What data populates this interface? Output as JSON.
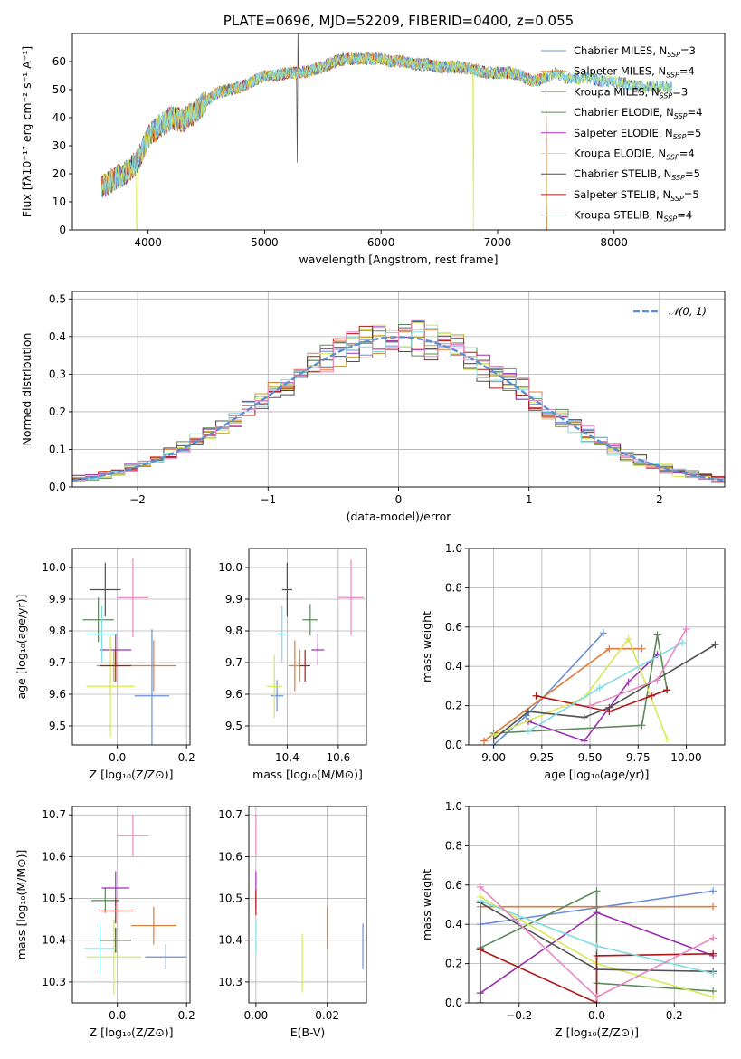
{
  "chart_data": [
    {
      "type": "line",
      "id": "spectrum",
      "title": "PLATE=0696, MJD=52209, FIBERID=0400, z=0.055",
      "xlabel": "wavelength [Angstrom, rest frame]",
      "ylabel": "Flux [fλ10⁻¹⁷ erg cm⁻² s⁻¹ A⁻¹]",
      "xlim": [
        3350,
        8950
      ],
      "ylim": [
        0,
        70
      ],
      "xticks": [
        4000,
        5000,
        6000,
        7000,
        8000
      ],
      "yticks": [
        0,
        10,
        20,
        30,
        40,
        50,
        60
      ],
      "grid": false,
      "legend_position": "top-right",
      "x": [
        3600,
        3700,
        3800,
        3900,
        4000,
        4100,
        4200,
        4300,
        4400,
        4500,
        4600,
        4700,
        4800,
        4900,
        5000,
        5100,
        5200,
        5300,
        5400,
        5500,
        5600,
        5700,
        5800,
        5900,
        6000,
        6100,
        6200,
        6300,
        6400,
        6500,
        6600,
        6700,
        6800,
        6900,
        7000,
        7100,
        7200,
        7300,
        7400,
        7500,
        7600,
        7700,
        7800,
        7900,
        8000,
        8100,
        8200,
        8300,
        8400,
        8500
      ],
      "y": [
        15,
        18,
        20,
        24,
        33,
        37,
        40,
        39,
        42,
        46,
        49,
        50,
        51,
        53,
        55,
        55,
        56,
        56,
        57,
        58,
        60,
        61,
        61,
        61,
        61,
        60,
        60,
        59,
        59,
        58,
        58,
        58,
        57,
        56,
        56,
        56,
        55,
        53,
        54,
        56,
        54,
        54,
        54,
        53,
        53,
        52,
        51,
        51,
        51,
        51
      ],
      "series": [
        {
          "name": "Chabrier MILES, N",
          "sub": "SSP",
          "suffix": "=3",
          "color": "#6a8ed8"
        },
        {
          "name": "Salpeter MILES, N",
          "sub": "SSP",
          "suffix": "=4",
          "color": "#e07b39"
        },
        {
          "name": "Kroupa MILES, N",
          "sub": "SSP",
          "suffix": "=3",
          "color": "#c8a028"
        },
        {
          "name": "Chabrier ELODIE, N",
          "sub": "SSP",
          "suffix": "=4",
          "color": "#5a8a5a"
        },
        {
          "name": "Salpeter ELODIE, N",
          "sub": "SSP",
          "suffix": "=5",
          "color": "#9b30b0"
        },
        {
          "name": "Kroupa ELODIE, N",
          "sub": "SSP",
          "suffix": "=4",
          "color": "#d8e858"
        },
        {
          "name": "Chabrier STELIB, N",
          "sub": "SSP",
          "suffix": "=5",
          "color": "#505050"
        },
        {
          "name": "Salpeter STELIB, N",
          "sub": "SSP",
          "suffix": "=5",
          "color": "#b01818"
        },
        {
          "name": "Kroupa STELIB, N",
          "sub": "SSP",
          "suffix": "=4",
          "color": "#80dce0"
        }
      ]
    },
    {
      "type": "line",
      "id": "residuals",
      "xlabel": "(data-model)/error",
      "ylabel": "Normed distribution",
      "xlim": [
        -2.5,
        2.5
      ],
      "ylim": [
        0,
        0.52
      ],
      "xticks": [
        -2,
        -1,
        0,
        1,
        2
      ],
      "xtick_labels": [
        "−2",
        "−1",
        "0",
        "1",
        "2"
      ],
      "yticks": [
        0.0,
        0.1,
        0.2,
        0.3,
        0.4,
        0.5
      ],
      "ytick_labels": [
        "0.0",
        "0.1",
        "0.2",
        "0.3",
        "0.4",
        "0.5"
      ],
      "grid": true,
      "legend": "𝒩(0, 1)",
      "legend_position": "top-right",
      "histogram_bin_width": 0.1,
      "reference_curve": "normal(0,1)",
      "reference_color": "#5b8fd1"
    },
    {
      "type": "scatter",
      "id": "age-vs-Z",
      "xlabel": "Z [log₁₀(Z/Z⊙)]",
      "ylabel": "age  [log₁₀(age/yr)]",
      "xlim": [
        -0.13,
        0.21
      ],
      "ylim": [
        9.44,
        10.06
      ],
      "xticks": [
        0.0,
        0.2
      ],
      "xtick_labels": [
        "0.0",
        "0.2"
      ],
      "yticks": [
        9.5,
        9.6,
        9.7,
        9.8,
        9.9,
        10.0
      ],
      "ytick_labels": [
        "9.5",
        "9.6",
        "9.7",
        "9.8",
        "9.9",
        "10.0"
      ],
      "grid": true,
      "points": [
        {
          "series": 0,
          "x": 0.1,
          "y": 9.595,
          "xerr": 0.05,
          "yerr": 0.21
        },
        {
          "series": 1,
          "x": 0.105,
          "y": 9.69,
          "xerr": 0.065,
          "yerr": 0.08
        },
        {
          "series": 2,
          "x": -0.01,
          "y": 9.69,
          "xerr": 0.05,
          "yerr": 0.05
        },
        {
          "series": 3,
          "x": -0.055,
          "y": 9.835,
          "xerr": 0.045,
          "yerr": 0.07
        },
        {
          "series": 4,
          "x": -0.005,
          "y": 9.74,
          "xerr": 0.045,
          "yerr": 0.05
        },
        {
          "series": 5,
          "x": -0.02,
          "y": 9.625,
          "xerr": 0.07,
          "yerr": 0.16
        },
        {
          "series": 6,
          "x": -0.035,
          "y": 9.93,
          "xerr": 0.045,
          "yerr": 0.085
        },
        {
          "series": 7,
          "x": -0.005,
          "y": 9.69,
          "xerr": 0.045,
          "yerr": 0.05
        },
        {
          "series": 8,
          "x": -0.045,
          "y": 9.79,
          "xerr": 0.045,
          "yerr": 0.09
        },
        {
          "series": 9,
          "x": 0.045,
          "y": 9.905,
          "xerr": 0.045,
          "yerr": 0.125
        }
      ]
    },
    {
      "type": "scatter",
      "id": "age-vs-mass",
      "xlabel": "mass [log₁₀(M/M⊙)]",
      "xlim": [
        10.25,
        10.71
      ],
      "ylim": [
        9.44,
        10.06
      ],
      "xticks": [
        10.4,
        10.6
      ],
      "xtick_labels": [
        "10.4",
        "10.6"
      ],
      "yticks": [
        9.5,
        9.6,
        9.7,
        9.8,
        9.9,
        10.0
      ],
      "ytick_labels": [
        "9.5",
        "9.6",
        "9.7",
        "9.8",
        "9.9",
        "10.0"
      ],
      "grid": true,
      "points": [
        {
          "series": 0,
          "x": 10.36,
          "y": 9.595,
          "xerr": 0.025,
          "yerr": 0.05
        },
        {
          "series": 1,
          "x": 10.43,
          "y": 9.69,
          "xerr": 0.025,
          "yerr": 0.08
        },
        {
          "series": 2,
          "x": 10.45,
          "y": 9.69,
          "xerr": 0.03,
          "yerr": 0.05
        },
        {
          "series": 3,
          "x": 10.49,
          "y": 9.835,
          "xerr": 0.03,
          "yerr": 0.05
        },
        {
          "series": 4,
          "x": 10.52,
          "y": 9.74,
          "xerr": 0.025,
          "yerr": 0.05
        },
        {
          "series": 5,
          "x": 10.35,
          "y": 9.625,
          "xerr": 0.03,
          "yerr": 0.1
        },
        {
          "series": 6,
          "x": 10.4,
          "y": 9.93,
          "xerr": 0.02,
          "yerr": 0.085
        },
        {
          "series": 7,
          "x": 10.47,
          "y": 9.69,
          "xerr": 0.02,
          "yerr": 0.05
        },
        {
          "series": 8,
          "x": 10.38,
          "y": 9.79,
          "xerr": 0.02,
          "yerr": 0.09
        },
        {
          "series": 9,
          "x": 10.65,
          "y": 9.905,
          "xerr": 0.05,
          "yerr": 0.12
        }
      ]
    },
    {
      "type": "line",
      "id": "weight-vs-age",
      "xlabel": "age  [log₁₀(age/yr)]",
      "ylabel": "mass weight",
      "xlim": [
        8.87,
        10.2
      ],
      "ylim": [
        0,
        1.0
      ],
      "xticks": [
        9.0,
        9.25,
        9.5,
        9.75,
        10.0
      ],
      "xtick_labels": [
        "9.00",
        "9.25",
        "9.50",
        "9.75",
        "10.00"
      ],
      "yticks": [
        0.0,
        0.2,
        0.4,
        0.6,
        0.8,
        1.0
      ],
      "ytick_labels": [
        "0.0",
        "0.2",
        "0.4",
        "0.6",
        "0.8",
        "1.0"
      ],
      "grid": true,
      "lines": [
        {
          "series": 0,
          "x": [
            9.0,
            9.17,
            9.57
          ],
          "y": [
            0.0,
            0.15,
            0.57
          ]
        },
        {
          "series": 1,
          "x": [
            8.95,
            9.6,
            9.77
          ],
          "y": [
            0.02,
            0.49,
            0.49
          ]
        },
        {
          "series": 3,
          "x": [
            9.0,
            9.77,
            9.85,
            9.9
          ],
          "y": [
            0.06,
            0.1,
            0.56,
            0.28
          ]
        },
        {
          "series": 4,
          "x": [
            9.18,
            9.47,
            9.7,
            9.85
          ],
          "y": [
            0.12,
            0.02,
            0.32,
            0.46
          ]
        },
        {
          "series": 5,
          "x": [
            9.0,
            9.47,
            9.7,
            9.9
          ],
          "y": [
            0.05,
            0.24,
            0.54,
            0.03
          ]
        },
        {
          "series": 6,
          "x": [
            9.0,
            9.18,
            9.47,
            9.6,
            10.15
          ],
          "y": [
            0.03,
            0.17,
            0.14,
            0.19,
            0.51
          ]
        },
        {
          "series": 7,
          "x": [
            9.22,
            9.6,
            9.82,
            9.9
          ],
          "y": [
            0.25,
            0.17,
            0.25,
            0.28
          ]
        },
        {
          "series": 8,
          "x": [
            9.18,
            9.55,
            9.98
          ],
          "y": [
            0.07,
            0.29,
            0.52
          ]
        },
        {
          "series": 9,
          "x": [
            9.5,
            9.85,
            10.0
          ],
          "y": [
            0.2,
            0.33,
            0.59
          ]
        }
      ]
    },
    {
      "type": "scatter",
      "id": "mass-vs-Z",
      "xlabel": "Z [log₁₀(Z/Z⊙)]",
      "ylabel": "mass [log₁₀(M/M⊙)]",
      "xlim": [
        -0.13,
        0.21
      ],
      "ylim": [
        10.25,
        10.72
      ],
      "xticks": [
        0.0,
        0.2
      ],
      "xtick_labels": [
        "0.0",
        "0.2"
      ],
      "yticks": [
        10.3,
        10.4,
        10.5,
        10.6,
        10.7
      ],
      "ytick_labels": [
        "10.3",
        "10.4",
        "10.5",
        "10.6",
        "10.7"
      ],
      "grid": true,
      "points": [
        {
          "series": 0,
          "x": 0.14,
          "y": 10.36,
          "xerr": 0.06,
          "yerr": 0.03
        },
        {
          "series": 1,
          "x": 0.105,
          "y": 10.435,
          "xerr": 0.065,
          "yerr": 0.045
        },
        {
          "series": 2,
          "x": -0.005,
          "y": 10.4,
          "xerr": 0.045,
          "yerr": 0.03
        },
        {
          "series": 3,
          "x": -0.035,
          "y": 10.495,
          "xerr": 0.04,
          "yerr": 0.03
        },
        {
          "series": 4,
          "x": -0.005,
          "y": 10.525,
          "xerr": 0.04,
          "yerr": 0.04
        },
        {
          "series": 5,
          "x": -0.01,
          "y": 10.36,
          "xerr": 0.08,
          "yerr": 0.09
        },
        {
          "series": 6,
          "x": -0.005,
          "y": 10.4,
          "xerr": 0.045,
          "yerr": 0.03
        },
        {
          "series": 7,
          "x": -0.005,
          "y": 10.47,
          "xerr": 0.05,
          "yerr": 0.03
        },
        {
          "series": 8,
          "x": -0.05,
          "y": 10.38,
          "xerr": 0.045,
          "yerr": 0.06
        },
        {
          "series": 9,
          "x": 0.045,
          "y": 10.65,
          "xerr": 0.045,
          "yerr": 0.05
        }
      ]
    },
    {
      "type": "scatter",
      "id": "mass-vs-EBV",
      "xlabel": "E(B-V)",
      "xlim": [
        -0.002,
        0.031
      ],
      "ylim": [
        10.25,
        10.72
      ],
      "xticks": [
        0.0,
        0.02
      ],
      "xtick_labels": [
        "0.00",
        "0.02"
      ],
      "yticks": [
        10.3,
        10.4,
        10.5,
        10.6,
        10.7
      ],
      "ytick_labels": [
        "10.3",
        "10.4",
        "10.5",
        "10.6",
        "10.7"
      ],
      "grid": true,
      "points": [
        {
          "series": 0,
          "x": 0.03,
          "y": 10.385,
          "xerr": 0,
          "yerr": 0.055
        },
        {
          "series": 1,
          "x": 0.02,
          "y": 10.43,
          "xerr": 0,
          "yerr": 0.05
        },
        {
          "series": 5,
          "x": 0.013,
          "y": 10.345,
          "xerr": 0,
          "yerr": 0.07
        },
        {
          "series": 4,
          "x": 0.0,
          "y": 10.52,
          "xerr": 0,
          "yerr": 0.045
        },
        {
          "series": 7,
          "x": 0.0,
          "y": 10.49,
          "xerr": 0,
          "yerr": 0.03
        },
        {
          "series": 8,
          "x": 0.0,
          "y": 10.41,
          "xerr": 0,
          "yerr": 0.04
        },
        {
          "series": 9,
          "x": 0.0,
          "y": 10.65,
          "xerr": 0,
          "yerr": 0.05
        }
      ]
    },
    {
      "type": "line",
      "id": "weight-vs-Z",
      "xlabel": "Z [log₁₀(Z/Z⊙)]",
      "ylabel": "mass weight",
      "xlim": [
        -0.33,
        0.33
      ],
      "ylim": [
        0,
        1.0
      ],
      "xticks": [
        -0.2,
        0.0,
        0.2
      ],
      "xtick_labels": [
        "−0.2",
        "0.0",
        "0.2"
      ],
      "yticks": [
        0.0,
        0.2,
        0.4,
        0.6,
        0.8,
        1.0
      ],
      "ytick_labels": [
        "0.0",
        "0.2",
        "0.4",
        "0.6",
        "0.8",
        "1.0"
      ],
      "grid": true,
      "lines": [
        {
          "series": 0,
          "x": [
            -0.3,
            0.3
          ],
          "y": [
            0.4,
            0.57
          ]
        },
        {
          "series": 1,
          "x": [
            -0.3,
            0.3
          ],
          "y": [
            0.49,
            0.49
          ]
        },
        {
          "series": 3,
          "x": [
            -0.3,
            0.0,
            0.0,
            0.3
          ],
          "y": [
            0.28,
            0.57,
            0.1,
            0.06
          ]
        },
        {
          "series": 4,
          "x": [
            -0.3,
            0.0,
            0.3
          ],
          "y": [
            0.05,
            0.46,
            0.24
          ]
        },
        {
          "series": 5,
          "x": [
            -0.3,
            0.0,
            0.3
          ],
          "y": [
            0.54,
            0.2,
            0.03
          ]
        },
        {
          "series": 6,
          "x": [
            -0.3,
            -0.3,
            0.0,
            0.3
          ],
          "y": [
            0.0,
            0.51,
            0.17,
            0.16
          ]
        },
        {
          "series": 7,
          "x": [
            -0.3,
            0.0,
            0.0,
            0.3
          ],
          "y": [
            0.27,
            0.0,
            0.24,
            0.25
          ]
        },
        {
          "series": 8,
          "x": [
            -0.3,
            0.0,
            0.3
          ],
          "y": [
            0.52,
            0.29,
            0.15
          ]
        },
        {
          "series": 9,
          "x": [
            -0.3,
            0.0,
            0.3
          ],
          "y": [
            0.59,
            0.03,
            0.33
          ]
        }
      ]
    }
  ],
  "colors": [
    "#6a8ed8",
    "#e07b39",
    "#c8a028",
    "#5a8a5a",
    "#9b30b0",
    "#d8e858",
    "#505050",
    "#b01818",
    "#80dce0",
    "#e888c0"
  ]
}
